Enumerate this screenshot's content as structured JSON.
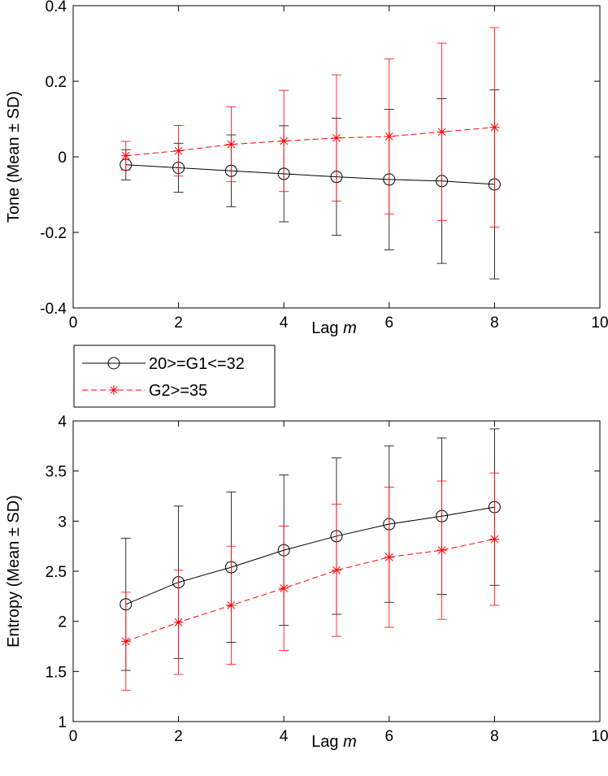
{
  "legend": {
    "entries": [
      {
        "label": "20>=G1<=32",
        "color": "#000000",
        "marker": "circle",
        "style": "solid"
      },
      {
        "label": "G2>=35",
        "color": "#ff0000",
        "marker": "star",
        "style": "dashed"
      }
    ]
  },
  "chart_data": [
    {
      "type": "line",
      "title": "",
      "xlabel_prefix": "Lag ",
      "xlabel_var": "m",
      "ylabel": "Tone (Mean ± SD)",
      "xlim": [
        0,
        10
      ],
      "ylim": [
        -0.4,
        0.4
      ],
      "xticks": [
        0,
        2,
        4,
        6,
        8,
        10
      ],
      "xtick_labels": [
        "0",
        "2",
        "4",
        "6",
        "8",
        "10"
      ],
      "yticks": [
        -0.4,
        -0.2,
        0,
        0.2,
        0.4
      ],
      "ytick_labels": [
        "-0.4",
        "-0.2",
        "0",
        "0.2",
        "0.4"
      ],
      "grid": false,
      "x": [
        1,
        2,
        3,
        4,
        5,
        6,
        7,
        8
      ],
      "series": [
        {
          "name": "20>=G1<=32",
          "color": "#000000",
          "marker": "circle",
          "dashed": false,
          "values": [
            -0.021,
            -0.029,
            -0.037,
            -0.045,
            -0.053,
            -0.06,
            -0.064,
            -0.073
          ],
          "sd": [
            0.04,
            0.065,
            0.095,
            0.127,
            0.155,
            0.186,
            0.218,
            0.25
          ]
        },
        {
          "name": "G2>=35",
          "color": "#ff0000",
          "marker": "star",
          "dashed": true,
          "values": [
            0.003,
            0.016,
            0.033,
            0.042,
            0.05,
            0.054,
            0.066,
            0.078
          ],
          "sd": [
            0.038,
            0.067,
            0.099,
            0.134,
            0.167,
            0.205,
            0.235,
            0.264
          ]
        }
      ]
    },
    {
      "type": "line",
      "title": "",
      "xlabel_prefix": "Lag ",
      "xlabel_var": "m",
      "ylabel": "Entropy (Mean ± SD)",
      "xlim": [
        0,
        10
      ],
      "ylim": [
        1,
        4
      ],
      "xticks": [
        0,
        2,
        4,
        6,
        8,
        10
      ],
      "xtick_labels": [
        "0",
        "2",
        "4",
        "6",
        "8",
        "10"
      ],
      "yticks": [
        1,
        1.5,
        2,
        2.5,
        3,
        3.5,
        4
      ],
      "ytick_labels": [
        "1",
        "1.5",
        "2",
        "2.5",
        "3",
        "3.5",
        "4"
      ],
      "grid": false,
      "x": [
        1,
        2,
        3,
        4,
        5,
        6,
        7,
        8
      ],
      "series": [
        {
          "name": "20>=G1<=32",
          "color": "#000000",
          "marker": "circle",
          "dashed": false,
          "values": [
            2.17,
            2.39,
            2.54,
            2.71,
            2.85,
            2.97,
            3.05,
            3.14
          ],
          "sd": [
            0.66,
            0.76,
            0.75,
            0.75,
            0.78,
            0.78,
            0.78,
            0.78
          ]
        },
        {
          "name": "G2>=35",
          "color": "#ff0000",
          "marker": "star",
          "dashed": true,
          "values": [
            1.8,
            1.99,
            2.16,
            2.33,
            2.51,
            2.64,
            2.71,
            2.82
          ],
          "sd": [
            0.49,
            0.52,
            0.59,
            0.62,
            0.66,
            0.7,
            0.69,
            0.66
          ]
        }
      ]
    }
  ]
}
